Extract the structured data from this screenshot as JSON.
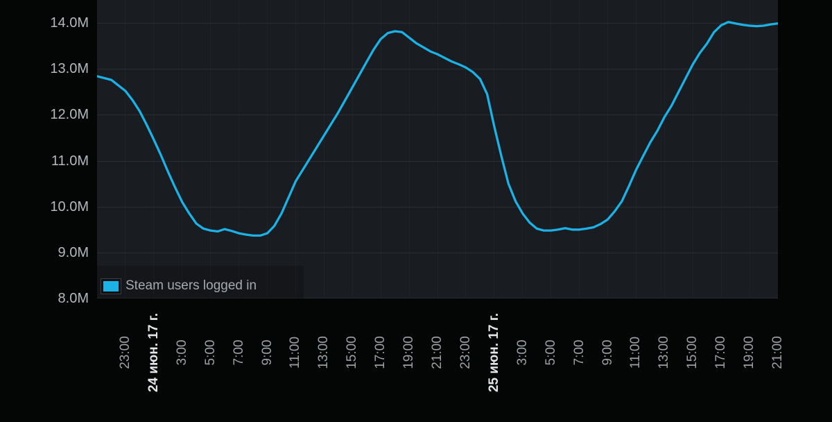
{
  "chart_data": {
    "type": "line",
    "title": "",
    "xlabel": "",
    "ylabel": "",
    "y_unit": "millions of users (M)",
    "ylim": [
      8.0,
      14.5
    ],
    "x_range_h": [
      0,
      48
    ],
    "x_start": "21:00 before 24 июн. 17 г.",
    "grid": "on",
    "legend_position": "bottom-left inside plot",
    "y_ticks": [
      {
        "value": 14.0,
        "label": "14.0M"
      },
      {
        "value": 13.0,
        "label": "13.0M"
      },
      {
        "value": 12.0,
        "label": "12.0M"
      },
      {
        "value": 11.0,
        "label": "11.0M"
      },
      {
        "value": 10.0,
        "label": "10.0M"
      },
      {
        "value": 9.0,
        "label": "9.0M"
      },
      {
        "value": 8.0,
        "label": "8.0M"
      }
    ],
    "x_ticks": [
      {
        "offset_h": 2,
        "label": "23:00",
        "kind": "time"
      },
      {
        "offset_h": 4,
        "label": "24 июн. 17 г.",
        "kind": "date"
      },
      {
        "offset_h": 6,
        "label": "3:00",
        "kind": "time"
      },
      {
        "offset_h": 8,
        "label": "5:00",
        "kind": "time"
      },
      {
        "offset_h": 10,
        "label": "7:00",
        "kind": "time"
      },
      {
        "offset_h": 12,
        "label": "9:00",
        "kind": "time"
      },
      {
        "offset_h": 14,
        "label": "11:00",
        "kind": "time"
      },
      {
        "offset_h": 16,
        "label": "13:00",
        "kind": "time"
      },
      {
        "offset_h": 18,
        "label": "15:00",
        "kind": "time"
      },
      {
        "offset_h": 20,
        "label": "17:00",
        "kind": "time"
      },
      {
        "offset_h": 22,
        "label": "19:00",
        "kind": "time"
      },
      {
        "offset_h": 24,
        "label": "21:00",
        "kind": "time"
      },
      {
        "offset_h": 26,
        "label": "23:00",
        "kind": "time"
      },
      {
        "offset_h": 28,
        "label": "25 июн. 17 г.",
        "kind": "date"
      },
      {
        "offset_h": 30,
        "label": "3:00",
        "kind": "time"
      },
      {
        "offset_h": 32,
        "label": "5:00",
        "kind": "time"
      },
      {
        "offset_h": 34,
        "label": "7:00",
        "kind": "time"
      },
      {
        "offset_h": 36,
        "label": "9:00",
        "kind": "time"
      },
      {
        "offset_h": 38,
        "label": "11:00",
        "kind": "time"
      },
      {
        "offset_h": 40,
        "label": "13:00",
        "kind": "time"
      },
      {
        "offset_h": 42,
        "label": "15:00",
        "kind": "time"
      },
      {
        "offset_h": 44,
        "label": "17:00",
        "kind": "time"
      },
      {
        "offset_h": 46,
        "label": "19:00",
        "kind": "time"
      },
      {
        "offset_h": 48,
        "label": "21:00",
        "kind": "time"
      }
    ],
    "series": [
      {
        "name": "Steam users logged in",
        "color": "#1cb2e6",
        "points_offset_h_value_M": [
          [
            0,
            12.84
          ],
          [
            1,
            12.76
          ],
          [
            2,
            12.52
          ],
          [
            2.5,
            12.32
          ],
          [
            3,
            12.08
          ],
          [
            3.5,
            11.78
          ],
          [
            4,
            11.46
          ],
          [
            4.5,
            11.12
          ],
          [
            5,
            10.76
          ],
          [
            5.5,
            10.42
          ],
          [
            6,
            10.1
          ],
          [
            6.5,
            9.85
          ],
          [
            7,
            9.63
          ],
          [
            7.5,
            9.52
          ],
          [
            8,
            9.48
          ],
          [
            8.5,
            9.46
          ],
          [
            9,
            9.51
          ],
          [
            9.5,
            9.47
          ],
          [
            10,
            9.42
          ],
          [
            10.5,
            9.39
          ],
          [
            11,
            9.37
          ],
          [
            11.5,
            9.37
          ],
          [
            12,
            9.42
          ],
          [
            12.5,
            9.58
          ],
          [
            13,
            9.85
          ],
          [
            13.5,
            10.2
          ],
          [
            14,
            10.55
          ],
          [
            15,
            11.05
          ],
          [
            16,
            11.55
          ],
          [
            17,
            12.05
          ],
          [
            18,
            12.6
          ],
          [
            19,
            13.15
          ],
          [
            19.5,
            13.42
          ],
          [
            20,
            13.65
          ],
          [
            20.5,
            13.78
          ],
          [
            21,
            13.82
          ],
          [
            21.5,
            13.8
          ],
          [
            22,
            13.68
          ],
          [
            22.5,
            13.56
          ],
          [
            23,
            13.47
          ],
          [
            23.5,
            13.38
          ],
          [
            24,
            13.32
          ],
          [
            24.5,
            13.24
          ],
          [
            25,
            13.16
          ],
          [
            25.5,
            13.1
          ],
          [
            26,
            13.03
          ],
          [
            26.5,
            12.93
          ],
          [
            27,
            12.78
          ],
          [
            27.5,
            12.45
          ],
          [
            28,
            11.75
          ],
          [
            28.5,
            11.1
          ],
          [
            29,
            10.5
          ],
          [
            29.5,
            10.12
          ],
          [
            30,
            9.85
          ],
          [
            30.5,
            9.65
          ],
          [
            31,
            9.52
          ],
          [
            31.5,
            9.48
          ],
          [
            32,
            9.48
          ],
          [
            32.5,
            9.5
          ],
          [
            33,
            9.53
          ],
          [
            33.5,
            9.5
          ],
          [
            34,
            9.5
          ],
          [
            34.5,
            9.52
          ],
          [
            35,
            9.55
          ],
          [
            35.5,
            9.62
          ],
          [
            36,
            9.72
          ],
          [
            36.5,
            9.9
          ],
          [
            37,
            10.12
          ],
          [
            37.5,
            10.45
          ],
          [
            38,
            10.8
          ],
          [
            38.5,
            11.1
          ],
          [
            39,
            11.4
          ],
          [
            39.5,
            11.65
          ],
          [
            40,
            11.95
          ],
          [
            40.5,
            12.2
          ],
          [
            41,
            12.5
          ],
          [
            41.5,
            12.8
          ],
          [
            42,
            13.1
          ],
          [
            42.5,
            13.35
          ],
          [
            43,
            13.55
          ],
          [
            43.5,
            13.8
          ],
          [
            44,
            13.95
          ],
          [
            44.5,
            14.02
          ],
          [
            45,
            13.99
          ],
          [
            45.5,
            13.96
          ],
          [
            46,
            13.94
          ],
          [
            46.5,
            13.93
          ],
          [
            47,
            13.94
          ],
          [
            47.5,
            13.97
          ],
          [
            48,
            13.99
          ]
        ]
      }
    ],
    "colors": {
      "page_background": "#040505",
      "plot_background": "#191c20",
      "gridline_horizontal": "#2a2d31",
      "gridline_vertical": "#1f2226",
      "line": "#1cb2e6",
      "y_tick_text": "#b4b9be",
      "x_time_text": "#9ba1a7",
      "x_date_text": "#e4e7ea",
      "legend_text": "#a4aab0",
      "legend_swatch": "#1cb4e8"
    }
  }
}
